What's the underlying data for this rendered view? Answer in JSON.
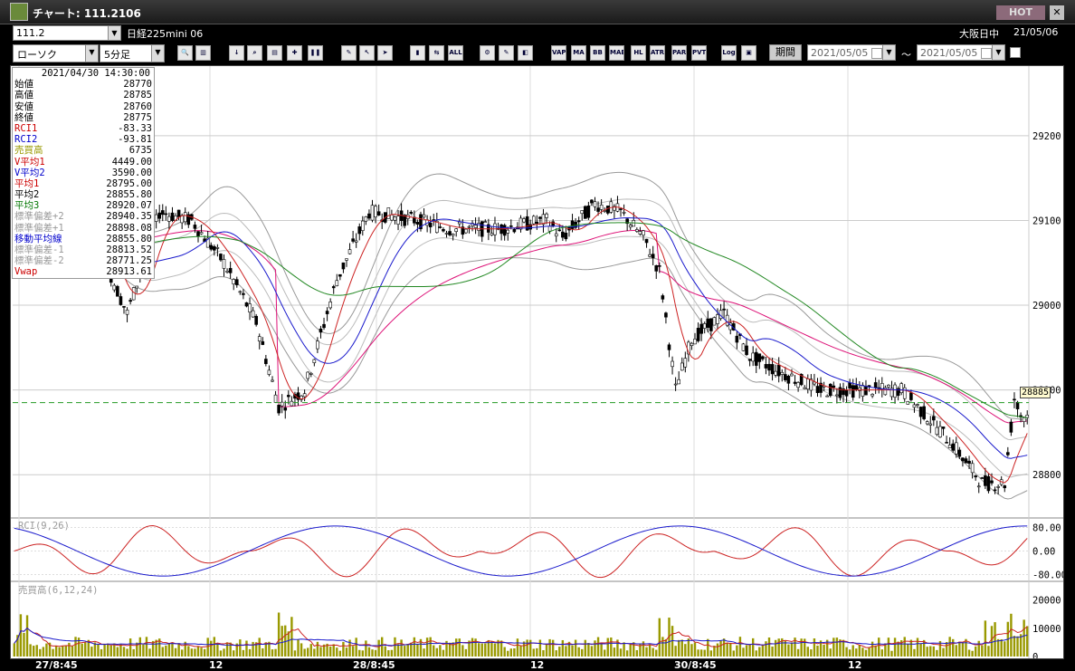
{
  "window": {
    "title": "チャート: 111.2106",
    "hot_label": "HOT",
    "close_label": "✕"
  },
  "infobar": {
    "symbol": "111.2",
    "instrument": "日経225mini 06",
    "market": "大阪日中",
    "date": "21/05/06"
  },
  "toolbar": {
    "chart_type": "ローソク",
    "interval": "5分足",
    "buttons": [
      "zoom-icon",
      "bars-icon",
      "buy-icon",
      "search-icon",
      "chart-icon",
      "scale-icon",
      "pause-icon",
      "draw-icon",
      "cursor-icon",
      "arrow-icon",
      "candle-icon",
      "split-icon",
      "ALL",
      "gear-icon",
      "wrench-icon",
      "color-icon",
      "VAP",
      "MA",
      "BB",
      "MAE",
      "HL",
      "ATR",
      "PARA",
      "PVT",
      "Log",
      "camera-icon"
    ],
    "period_label": "期間",
    "date_from": "2021/05/05",
    "tilde": "～",
    "date_to": "2021/05/05"
  },
  "info_panel": {
    "datetime": "2021/04/30  14:30:00",
    "rows": [
      {
        "label": "始値",
        "value": "28770",
        "color": "#000000"
      },
      {
        "label": "高値",
        "value": "28785",
        "color": "#000000"
      },
      {
        "label": "安値",
        "value": "28760",
        "color": "#000000"
      },
      {
        "label": "終値",
        "value": "28775",
        "color": "#000000"
      },
      {
        "label": "RCI1",
        "value": "-83.33",
        "color": "#cc0000"
      },
      {
        "label": "RCI2",
        "value": "-93.81",
        "color": "#0000cc"
      },
      {
        "label": "売買高",
        "value": "6735",
        "color": "#999900"
      },
      {
        "label": "V平均1",
        "value": "4449.00",
        "color": "#cc0000"
      },
      {
        "label": "V平均2",
        "value": "3590.00",
        "color": "#0000cc"
      },
      {
        "label": "平均1",
        "value": "28795.00",
        "color": "#cc0000"
      },
      {
        "label": "平均2",
        "value": "28855.80",
        "color": "#000000"
      },
      {
        "label": "平均3",
        "value": "28920.07",
        "color": "#007700"
      },
      {
        "label": "標準偏差+2",
        "value": "28940.35",
        "color": "#999999"
      },
      {
        "label": "標準偏差+1",
        "value": "28898.08",
        "color": "#999999"
      },
      {
        "label": "移動平均線",
        "value": "28855.80",
        "color": "#0000cc"
      },
      {
        "label": "標準偏差-1",
        "value": "28813.52",
        "color": "#999999"
      },
      {
        "label": "標準偏差-2",
        "value": "28771.25",
        "color": "#999999"
      },
      {
        "label": "Vwap",
        "value": "28913.61",
        "color": "#cc0000"
      }
    ]
  },
  "price_axis": {
    "labels": [
      "29200",
      "29100",
      "29000",
      "28900",
      "28800"
    ],
    "current_price": "28885"
  },
  "rci_panel": {
    "title": "RCI(9,26)",
    "labels": [
      "80.00",
      "0.00",
      "-80.00"
    ]
  },
  "volume_panel": {
    "title": "売買高(6,12,24)",
    "labels": [
      "20000",
      "10000",
      "0"
    ]
  },
  "x_axis": {
    "labels": [
      "27/8:45",
      "12",
      "28/8:45",
      "12",
      "30/8:45",
      "12"
    ]
  },
  "chart_data": {
    "type": "candlestick",
    "y_range": [
      28750,
      29280
    ],
    "price_anchors": [
      [
        0,
        29130
      ],
      [
        10,
        29100
      ],
      [
        25,
        29080
      ],
      [
        35,
        28990
      ],
      [
        45,
        29110
      ],
      [
        55,
        29100
      ],
      [
        65,
        29050
      ],
      [
        75,
        28980
      ],
      [
        82,
        28880
      ],
      [
        90,
        28900
      ],
      [
        100,
        29030
      ],
      [
        110,
        29110
      ],
      [
        125,
        29100
      ],
      [
        135,
        29090
      ],
      [
        150,
        29090
      ],
      [
        165,
        29100
      ],
      [
        170,
        29080
      ],
      [
        180,
        29120
      ],
      [
        188,
        29110
      ],
      [
        195,
        29080
      ],
      [
        200,
        29040
      ],
      [
        205,
        28900
      ],
      [
        210,
        28960
      ],
      [
        220,
        28990
      ],
      [
        228,
        28940
      ],
      [
        238,
        28920
      ],
      [
        250,
        28900
      ],
      [
        265,
        28900
      ],
      [
        275,
        28900
      ],
      [
        280,
        28880
      ],
      [
        290,
        28840
      ],
      [
        300,
        28790
      ],
      [
        307,
        28790
      ],
      [
        310,
        28890
      ],
      [
        312,
        28870
      ]
    ],
    "bars": 315,
    "rci_range": [
      -100,
      100
    ],
    "volume_range": [
      0,
      25000
    ]
  },
  "colors": {
    "ma1": "#cc2222",
    "ma2": "#1a1acc",
    "ma3": "#228822",
    "vwap": "#dd1177",
    "bb": "#999999",
    "vol_bar": "#999900"
  }
}
